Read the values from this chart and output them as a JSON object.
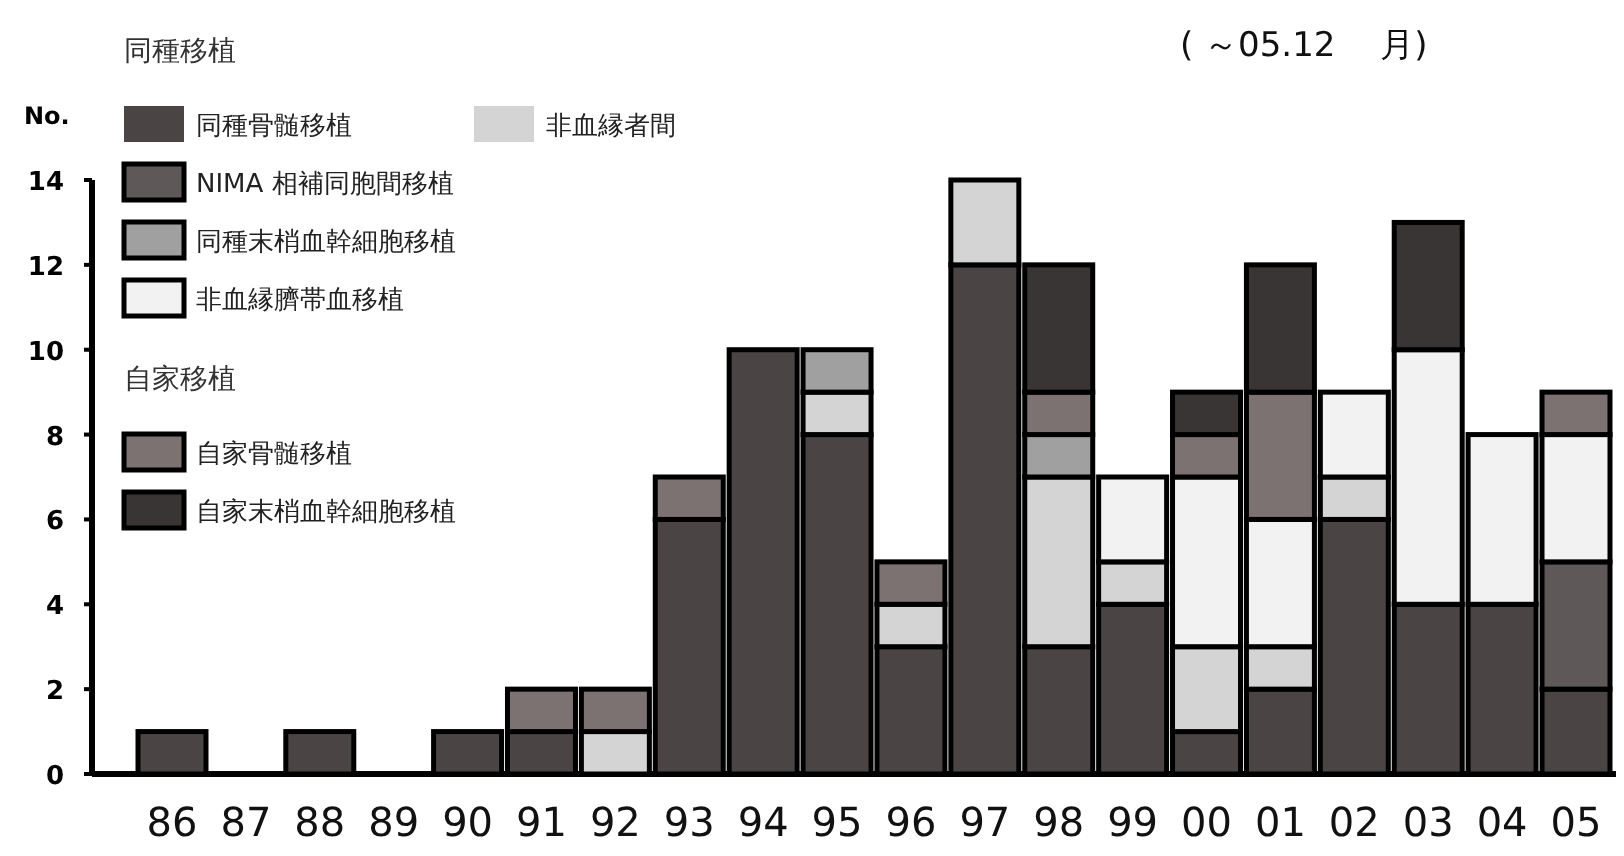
{
  "chart_data": {
    "type": "bar",
    "stacked": true,
    "legend_title": "同種移植",
    "ylabel": "No.",
    "annotations": [
      "自家移植",
      "(  ～05.12　 月)"
    ],
    "categories": [
      "86",
      "87",
      "88",
      "89",
      "90",
      "91",
      "92",
      "93",
      "94",
      "95",
      "96",
      "97",
      "98",
      "99",
      "00",
      "01",
      "02",
      "03",
      "04",
      "05"
    ],
    "series": [
      {
        "name": "同種骨髄移植",
        "color": "#4a4444",
        "values": [
          1,
          0,
          1,
          0,
          1,
          1,
          0,
          6,
          10,
          8,
          3,
          12,
          3,
          4,
          1,
          2,
          6,
          4,
          4,
          2
        ]
      },
      {
        "name": "非血縁者間",
        "color": "#d4d4d4",
        "values": [
          0,
          0,
          0,
          0,
          0,
          0,
          1,
          0,
          0,
          1,
          1,
          2,
          4,
          1,
          2,
          1,
          1,
          0,
          0,
          0
        ]
      },
      {
        "name": "NIMA 相補同胞間移植",
        "color": "#5e5858",
        "values": [
          0,
          0,
          0,
          0,
          0,
          0,
          0,
          0,
          0,
          0,
          0,
          0,
          0,
          0,
          0,
          0,
          0,
          0,
          0,
          3
        ]
      },
      {
        "name": "同種末梢血幹細胞移植",
        "color": "#a0a0a0",
        "values": [
          0,
          0,
          0,
          0,
          0,
          0,
          0,
          0,
          0,
          1,
          0,
          0,
          1,
          0,
          0,
          0,
          0,
          0,
          0,
          0
        ]
      },
      {
        "name": "非血縁臍帯血移植",
        "color": "#f2f2f2",
        "values": [
          0,
          0,
          0,
          0,
          0,
          0,
          0,
          0,
          0,
          0,
          0,
          0,
          0,
          2,
          4,
          3,
          2,
          6,
          4,
          3
        ]
      },
      {
        "name": "自家骨髄移植",
        "color": "#7c7272",
        "values": [
          0,
          0,
          0,
          0,
          0,
          1,
          1,
          1,
          0,
          0,
          1,
          0,
          1,
          0,
          1,
          3,
          0,
          0,
          0,
          1
        ]
      },
      {
        "name": "自家末梢血幹細胞移植",
        "color": "#3a3535",
        "values": [
          0,
          0,
          0,
          0,
          0,
          0,
          0,
          0,
          0,
          0,
          0,
          0,
          3,
          0,
          1,
          3,
          0,
          3,
          0,
          0
        ]
      }
    ],
    "ylim": [
      0,
      14
    ],
    "yticks": [
      0,
      2,
      4,
      6,
      8,
      10,
      12,
      14
    ],
    "legend": "top left"
  }
}
